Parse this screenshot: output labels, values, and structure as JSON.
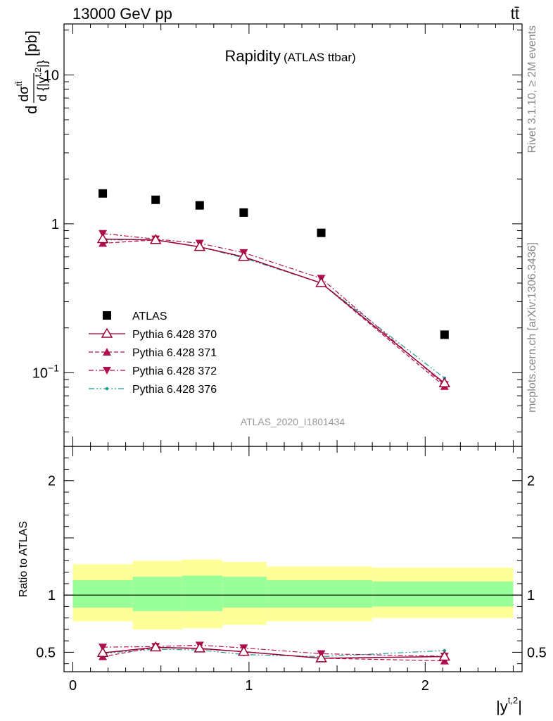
{
  "header": {
    "left": "13000 GeV pp",
    "right": "tt̄"
  },
  "side_labels": {
    "rivet": "Rivet 3.1.10, ≥ 2M events",
    "mcplots": "mcplots.cern.ch [arXiv:1306.3436]"
  },
  "analysis_id": "ATLAS_2020_I1801434",
  "chart_data": [
    {
      "type": "scatter",
      "title": "Rapidity",
      "subtitle": "(ATLAS ttbar)",
      "xlabel": "|y^{t,2}|",
      "ylabel": "d dσ^{tt̄} / d {|y^{t,2}|} [pb]",
      "yscale": "log",
      "xlim": [
        -0.05,
        2.55
      ],
      "ylim": [
        0.032,
        22
      ],
      "y_ticks": [
        {
          "value": 0.1,
          "label": "10^{-1}"
        },
        {
          "value": 1,
          "label": "1"
        },
        {
          "value": 10,
          "label": "10"
        }
      ],
      "legend_position": "bottom-left",
      "data_bins": {
        "xlow": [
          0.0,
          0.34,
          0.62,
          0.85,
          1.1,
          1.7
        ],
        "xhigh": [
          0.34,
          0.62,
          0.85,
          1.1,
          1.7,
          2.5
        ]
      },
      "x": [
        0.17,
        0.47,
        0.72,
        0.97,
        1.41,
        2.11
      ],
      "series": [
        {
          "name": "ATLAS",
          "values": [
            1.6,
            1.45,
            1.33,
            1.19,
            0.87,
            0.18
          ],
          "color": "#000000",
          "marker": "square",
          "line": "none"
        },
        {
          "name": "Pythia 6.428 370",
          "values": [
            0.79,
            0.78,
            0.7,
            0.6,
            0.4,
            0.085
          ],
          "color": "#990033",
          "marker": "open-triangle-up",
          "line": "solid"
        },
        {
          "name": "Pythia 6.428 371",
          "values": [
            0.74,
            0.78,
            0.7,
            0.6,
            0.4,
            0.081
          ],
          "color": "#b01050",
          "marker": "filled-triangle-up",
          "line": "dashed"
        },
        {
          "name": "Pythia 6.428 372",
          "values": [
            0.86,
            0.79,
            0.74,
            0.64,
            0.43,
            0.083
          ],
          "color": "#b01050",
          "marker": "filled-triangle-down",
          "line": "dashdot"
        },
        {
          "name": "Pythia 6.428 376",
          "values": [
            0.78,
            0.78,
            0.7,
            0.59,
            0.4,
            0.092
          ],
          "color": "#22998f",
          "marker": "dot",
          "line": "dashdotdot"
        }
      ]
    },
    {
      "type": "line",
      "ylabel": "Ratio to ATLAS",
      "xlabel": "|y^{t,2}|",
      "xlim": [
        -0.05,
        2.55
      ],
      "ylim": [
        0.33,
        2.3
      ],
      "x_ticks": [
        0,
        1,
        2
      ],
      "y_ticks": [
        0.5,
        1,
        2
      ],
      "bands": {
        "xlow": [
          0.0,
          0.34,
          0.62,
          0.85,
          1.1,
          1.7
        ],
        "xhigh": [
          0.34,
          0.62,
          0.85,
          1.1,
          1.7,
          2.5
        ],
        "outer": [
          [
            0.77,
            1.27
          ],
          [
            0.7,
            1.3
          ],
          [
            0.71,
            1.31
          ],
          [
            0.74,
            1.29
          ],
          [
            0.77,
            1.25
          ],
          [
            0.8,
            1.24
          ]
        ],
        "inner": [
          [
            0.89,
            1.13
          ],
          [
            0.86,
            1.16
          ],
          [
            0.86,
            1.17
          ],
          [
            0.89,
            1.16
          ],
          [
            0.89,
            1.13
          ],
          [
            0.9,
            1.12
          ]
        ],
        "outer_color": "#ffff99",
        "inner_color": "#99ff99"
      },
      "x": [
        0.17,
        0.47,
        0.72,
        0.97,
        1.41,
        2.11
      ],
      "series": [
        {
          "name": "Pythia 6.428 370",
          "values": [
            0.495,
            0.543,
            0.534,
            0.505,
            0.448,
            0.462
          ]
        },
        {
          "name": "Pythia 6.428 371",
          "values": [
            0.462,
            0.543,
            0.53,
            0.505,
            0.448,
            0.425
          ]
        },
        {
          "name": "Pythia 6.428 372",
          "values": [
            0.545,
            0.55,
            0.562,
            0.538,
            0.487,
            0.465
          ]
        },
        {
          "name": "Pythia 6.428 376",
          "values": [
            0.49,
            0.527,
            0.52,
            0.48,
            0.462,
            0.515
          ]
        }
      ]
    }
  ]
}
